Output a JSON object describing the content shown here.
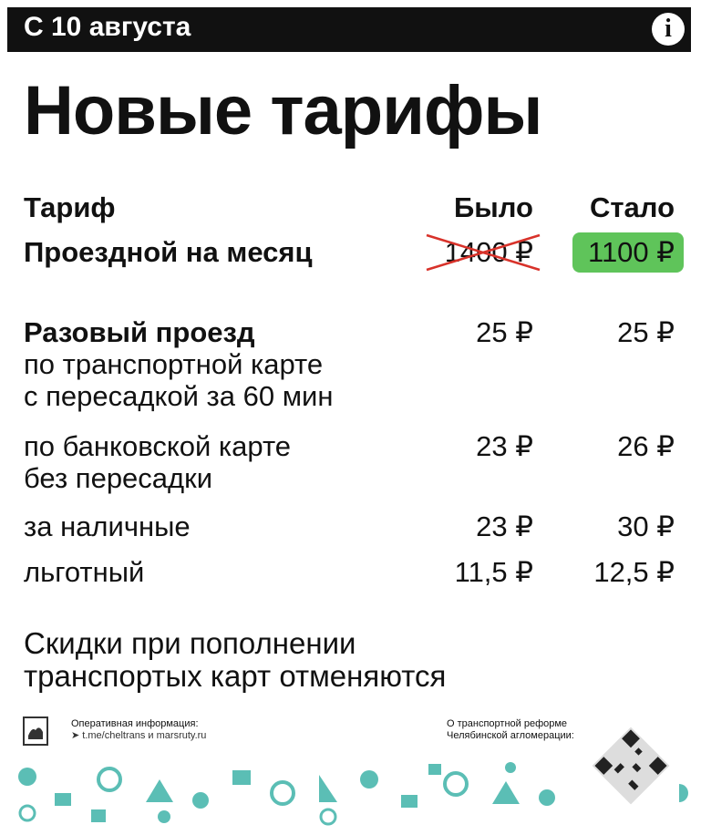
{
  "header": {
    "date": "С 10 августа"
  },
  "title": "Новые тарифы",
  "table": {
    "columns": [
      "Тариф",
      "Было",
      "Стало"
    ],
    "rows": [
      {
        "label": [
          "Проездной на месяц"
        ],
        "old": "1400 ₽",
        "new": "1100 ₽"
      },
      {
        "label": [
          "Разовый проезд",
          "по транспортной карте",
          "с пересадкой за 60 мин"
        ],
        "old": "25 ₽",
        "new": "25 ₽"
      },
      {
        "label": [
          "по банковской карте",
          "без пересадки"
        ],
        "old": "23 ₽",
        "new": "26 ₽"
      },
      {
        "label": [
          "за наличные"
        ],
        "old": "23 ₽",
        "new": "30 ₽"
      },
      {
        "label": [
          "льготный"
        ],
        "old": "11,5 ₽",
        "new": "12,5 ₽"
      }
    ]
  },
  "note": [
    "Скидки при пополнении",
    "транспортых карт отменяются"
  ],
  "footer": {
    "info": [
      "Оперативная информация:",
      "t.me/cheltrans и marsruty.ru"
    ],
    "reform": [
      "О транспортной реформе",
      "Челябинской агломерации:"
    ]
  }
}
